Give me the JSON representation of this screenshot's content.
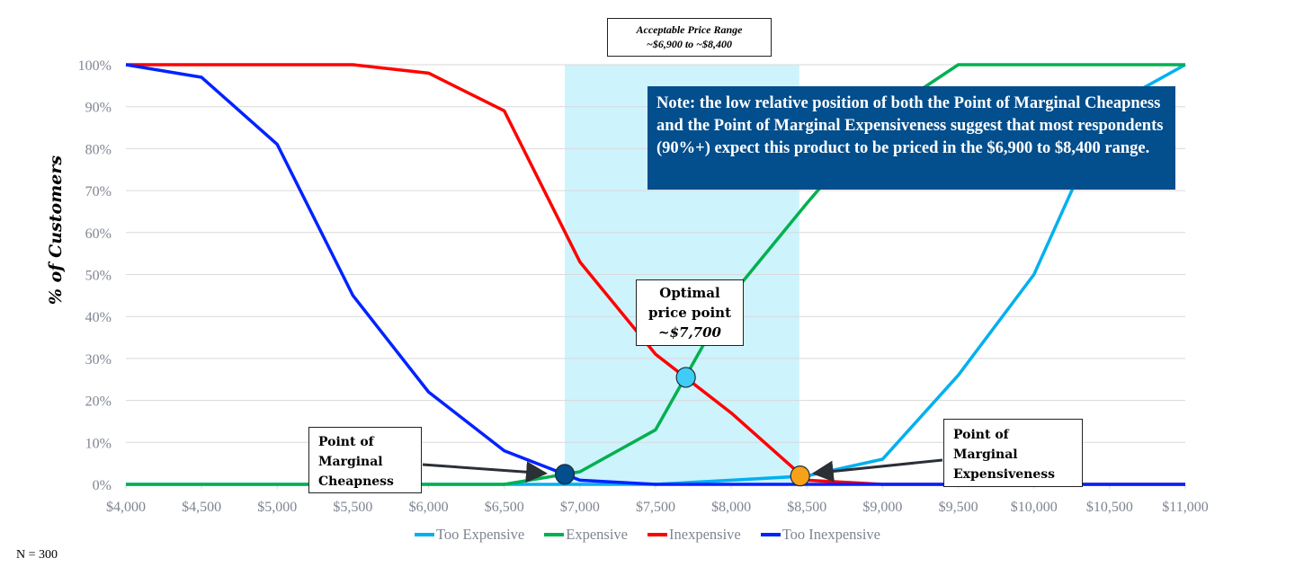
{
  "chart_data": {
    "type": "line",
    "title": "",
    "xlabel": "",
    "ylabel": "% of Customers",
    "xlim": [
      4000,
      11000
    ],
    "ylim": [
      0,
      100
    ],
    "x": [
      4000,
      4500,
      5000,
      5500,
      6000,
      6500,
      7000,
      7500,
      8000,
      8500,
      9000,
      9500,
      10000,
      10500,
      11000
    ],
    "x_tick_labels": [
      "$4,000",
      "$4,500",
      "$5,000",
      "$5,500",
      "$6,000",
      "$6,500",
      "$7,000",
      "$7,500",
      "$8,000",
      "$8,500",
      "$9,000",
      "$9,500",
      "$10,000",
      "$10,500",
      "$11,000"
    ],
    "y_ticks": [
      0,
      10,
      20,
      30,
      40,
      50,
      60,
      70,
      80,
      90,
      100
    ],
    "y_tick_labels": [
      "0%",
      "10%",
      "20%",
      "30%",
      "40%",
      "50%",
      "60%",
      "70%",
      "80%",
      "90%",
      "100%"
    ],
    "grid": true,
    "legend_position": "bottom",
    "series": [
      {
        "name": "Too Expensive",
        "color": "#00b0f0",
        "values": [
          0,
          0,
          0,
          0,
          0,
          0,
          0,
          0,
          1,
          2,
          6,
          26,
          50,
          90,
          100
        ]
      },
      {
        "name": "Expensive",
        "color": "#00b050",
        "values": [
          0,
          0,
          0,
          0,
          0,
          0,
          3,
          13,
          45,
          67,
          88,
          100,
          100,
          100,
          100
        ]
      },
      {
        "name": "Inexpensive",
        "color": "#ff0000",
        "values": [
          100,
          100,
          100,
          100,
          98,
          89,
          53,
          31,
          17,
          1,
          0,
          0,
          0,
          0,
          0
        ]
      },
      {
        "name": "Too Inexpensive",
        "color": "#0022ff",
        "values": [
          100,
          97,
          81,
          45,
          22,
          8,
          1,
          0,
          0,
          0,
          0,
          0,
          0,
          0,
          0
        ]
      }
    ],
    "acceptable_band": {
      "from": 6900,
      "to": 8450,
      "color": "#cdf3fd"
    },
    "markers": [
      {
        "name": "point-of-marginal-cheapness",
        "x": 6900,
        "y": 2.4,
        "color": "#034e8c"
      },
      {
        "name": "optimal-price-point",
        "x": 7700,
        "y": 25.5,
        "color": "#3fcdf7"
      },
      {
        "name": "point-of-marginal-expensiveness",
        "x": 8455,
        "y": 2,
        "color": "#f7a11a"
      }
    ],
    "annotations": {
      "range_line1": "Acceptable Price Range",
      "range_line2": "~$6,900 to ~$8,400",
      "note": "Note:  the low relative position of both the Point of Marginal Cheapness and the Point of Marginal Expensiveness suggest that most respondents (90%+) expect this product to be priced in the $6,900 to $8,400 range.",
      "optimal_line1": "Optimal",
      "optimal_line2": "price point",
      "optimal_line3": "~$7,700",
      "pmc_line1": "Point of",
      "pmc_line2": "Marginal",
      "pmc_line3": "Cheapness",
      "pme_line1": "Point of",
      "pme_line2": "Marginal",
      "pme_line3": "Expensiveness"
    },
    "footnote": "N = 300"
  }
}
